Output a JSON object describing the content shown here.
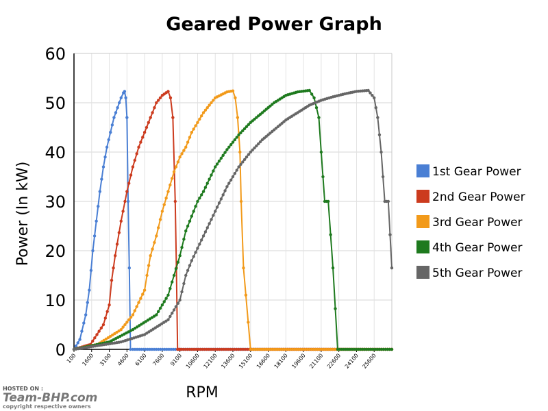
{
  "chart_data": {
    "type": "line",
    "title": "Geared Power Graph",
    "xlabel": "RPM",
    "ylabel": "Power (In kW)",
    "ylim": [
      0,
      60
    ],
    "yticks": [
      "0",
      "10",
      "20",
      "30",
      "40",
      "50",
      "60"
    ],
    "xlim": [
      100,
      27100
    ],
    "xticks": [
      "100",
      "1600",
      "3100",
      "4600",
      "6100",
      "7600",
      "9100",
      "10600",
      "12100",
      "13600",
      "15100",
      "16600",
      "18100",
      "19600",
      "21100",
      "22600",
      "24100",
      "25600"
    ],
    "grid": true,
    "legend_position": "right",
    "series": [
      {
        "name": "1st Gear Power",
        "color": "#4a7fd4",
        "x": [
          100,
          600,
          1100,
          1400,
          1700,
          2000,
          2300,
          2600,
          2900,
          3200,
          3500,
          3800,
          4100,
          4300,
          4400,
          4500,
          4600,
          4700,
          4800,
          4900,
          5100,
          27100
        ],
        "y": [
          0,
          2,
          7,
          12,
          20,
          26,
          32,
          37,
          41,
          44,
          47,
          49,
          51,
          52,
          52.3,
          51,
          47,
          30,
          16.5,
          0,
          0,
          0
        ]
      },
      {
        "name": "2nd Gear Power",
        "color": "#cc3b1e",
        "x": [
          100,
          1500,
          2600,
          3100,
          3300,
          3600,
          4100,
          4600,
          5100,
          5600,
          6100,
          6600,
          7100,
          7600,
          8100,
          8300,
          8500,
          8700,
          8800,
          8900,
          9000,
          9100,
          9200,
          27100
        ],
        "y": [
          0,
          1,
          5,
          9,
          14,
          19,
          26,
          32,
          37,
          41,
          44,
          47,
          50,
          51.5,
          52.3,
          51,
          47,
          30,
          16.5,
          0,
          0,
          0,
          0,
          0
        ]
      },
      {
        "name": "3rd Gear Power",
        "color": "#f29a1a",
        "x": [
          100,
          2100,
          4100,
          5100,
          6100,
          6300,
          6600,
          7100,
          7600,
          8100,
          8600,
          9100,
          9600,
          10100,
          11100,
          12100,
          13100,
          13600,
          13800,
          14000,
          14200,
          14300,
          14500,
          15100,
          27100
        ],
        "y": [
          0,
          1,
          4,
          7,
          12,
          15,
          19,
          23,
          28,
          32,
          36,
          39,
          41,
          44,
          48,
          51,
          52.2,
          52.4,
          51,
          47,
          40,
          30,
          16.5,
          0,
          0
        ]
      },
      {
        "name": "4th Gear Power",
        "color": "#1e7a1e",
        "x": [
          100,
          3100,
          5100,
          7100,
          8100,
          8600,
          9100,
          9600,
          10100,
          10600,
          11100,
          12100,
          13100,
          14100,
          15100,
          16100,
          17100,
          18100,
          19100,
          20100,
          20500,
          20900,
          21100,
          21400,
          21700,
          22100,
          22500,
          27100
        ],
        "y": [
          0,
          1.5,
          4,
          7,
          11,
          15,
          19,
          24,
          27,
          30,
          32,
          37,
          40.5,
          43.5,
          46,
          48,
          50,
          51.5,
          52.2,
          52.5,
          51,
          47,
          40,
          30,
          30,
          16.5,
          0,
          0
        ]
      },
      {
        "name": "5th Gear Power",
        "color": "#666666",
        "x": [
          100,
          4100,
          6100,
          8100,
          9100,
          9600,
          10100,
          11100,
          12100,
          13100,
          14100,
          15100,
          16100,
          17100,
          18100,
          19100,
          20100,
          21100,
          22100,
          23100,
          24100,
          25100,
          25600,
          25900,
          26200,
          26500,
          26800,
          27100
        ],
        "y": [
          0,
          1.5,
          3,
          6,
          10,
          15,
          18,
          23,
          28,
          33,
          37,
          40,
          42.5,
          44.5,
          46.5,
          48,
          49.5,
          50.5,
          51.2,
          51.8,
          52.3,
          52.5,
          51,
          47,
          40,
          30,
          30,
          16.5
        ]
      }
    ]
  },
  "watermark": {
    "hosted_on": "HOSTED ON :",
    "brand": "Team-BHP.com",
    "copyright": "copyright respective owners"
  }
}
